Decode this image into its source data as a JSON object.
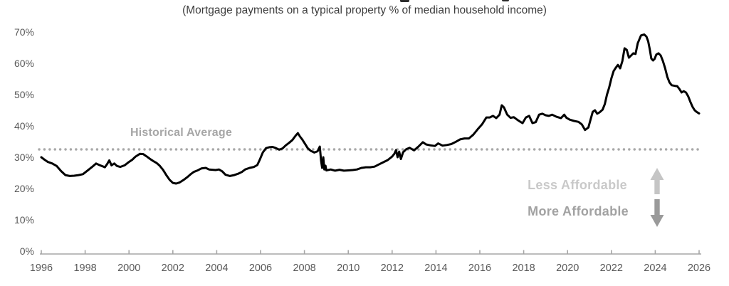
{
  "header": {
    "subtitle": "(Mortgage payments on a typical property % of median household income)"
  },
  "annotations": {
    "historical_average_label": "Historical Average",
    "less_affordable_label": "Less Affordable",
    "more_affordable_label": "More Affordable"
  },
  "colors": {
    "series_line": "#000000",
    "historical_average_dots": "#a8a8a8",
    "historical_average_text": "#a6a6a6",
    "less_affordable_text": "#c9c9c9",
    "more_affordable_text": "#a2a2a2",
    "up_arrow": "#c5c5c5",
    "down_arrow": "#9a9a9a",
    "axis_line": "#a6a6a6",
    "axis_labels": "#595959",
    "subtitle_text": "#3d3d3d"
  },
  "chart_data": {
    "type": "line",
    "title": "",
    "subtitle": "(Mortgage payments on a typical property % of median household income)",
    "xlabel": "",
    "ylabel": "",
    "xlim": [
      1996,
      2026
    ],
    "ylim": [
      0,
      70
    ],
    "grid": false,
    "legend": "none",
    "x_tick_labels": [
      "1996",
      "1998",
      "2000",
      "2002",
      "2004",
      "2006",
      "2008",
      "2010",
      "2012",
      "2014",
      "2016",
      "2018",
      "2020",
      "2022",
      "2024",
      "2026"
    ],
    "y_tick_labels": [
      "0%",
      "10%",
      "20%",
      "30%",
      "40%",
      "50%",
      "60%",
      "70%"
    ],
    "y_tick_values": [
      0,
      10,
      20,
      30,
      40,
      50,
      60,
      70
    ],
    "historical_average": 32.5,
    "series": [
      {
        "name": "Mortgage payments on a typical property % of median household income",
        "x": [
          1996.0,
          1996.15,
          1996.3,
          1996.5,
          1996.7,
          1996.9,
          1997.1,
          1997.3,
          1997.5,
          1997.7,
          1997.9,
          1998.1,
          1998.3,
          1998.5,
          1998.65,
          1998.8,
          1998.9,
          1999.0,
          1999.1,
          1999.2,
          1999.33,
          1999.45,
          1999.6,
          1999.8,
          2000.0,
          2000.15,
          2000.3,
          2000.5,
          2000.65,
          2000.8,
          2000.95,
          2001.1,
          2001.25,
          2001.4,
          2001.55,
          2001.7,
          2001.85,
          2002.0,
          2002.15,
          2002.3,
          2002.5,
          2002.65,
          2002.8,
          2002.95,
          2003.1,
          2003.3,
          2003.5,
          2003.65,
          2003.8,
          2003.95,
          2004.1,
          2004.25,
          2004.4,
          2004.6,
          2004.8,
          2005.0,
          2005.15,
          2005.3,
          2005.5,
          2005.7,
          2005.85,
          2005.95,
          2006.1,
          2006.25,
          2006.4,
          2006.55,
          2006.7,
          2006.85,
          2007.0,
          2007.15,
          2007.3,
          2007.45,
          2007.6,
          2007.7,
          2007.8,
          2007.9,
          2008.0,
          2008.15,
          2008.3,
          2008.45,
          2008.6,
          2008.7,
          2008.76,
          2008.81,
          2008.86,
          2008.91,
          2008.96,
          2009.0,
          2009.2,
          2009.4,
          2009.6,
          2009.8,
          2010.0,
          2010.2,
          2010.4,
          2010.6,
          2010.8,
          2011.0,
          2011.2,
          2011.4,
          2011.6,
          2011.8,
          2012.0,
          2012.1,
          2012.18,
          2012.25,
          2012.32,
          2012.4,
          2012.5,
          2012.65,
          2012.8,
          2013.0,
          2013.2,
          2013.4,
          2013.55,
          2013.75,
          2013.95,
          2014.1,
          2014.3,
          2014.5,
          2014.7,
          2014.9,
          2015.1,
          2015.3,
          2015.5,
          2015.7,
          2015.9,
          2016.1,
          2016.3,
          2016.45,
          2016.6,
          2016.75,
          2016.9,
          2017.0,
          2017.1,
          2017.25,
          2017.4,
          2017.55,
          2017.7,
          2017.85,
          2017.95,
          2018.1,
          2018.25,
          2018.4,
          2018.55,
          2018.7,
          2018.85,
          2019.0,
          2019.15,
          2019.3,
          2019.5,
          2019.7,
          2019.85,
          2019.95,
          2020.1,
          2020.3,
          2020.5,
          2020.65,
          2020.8,
          2020.95,
          2021.05,
          2021.15,
          2021.25,
          2021.35,
          2021.45,
          2021.6,
          2021.7,
          2021.8,
          2021.9,
          2022.0,
          2022.1,
          2022.2,
          2022.3,
          2022.4,
          2022.5,
          2022.6,
          2022.7,
          2022.8,
          2022.9,
          2023.0,
          2023.1,
          2023.2,
          2023.35,
          2023.5,
          2023.6,
          2023.68,
          2023.75,
          2023.82,
          2023.9,
          2023.97,
          2024.05,
          2024.15,
          2024.25,
          2024.35,
          2024.45,
          2024.55,
          2024.65,
          2024.75,
          2024.9,
          2025.0,
          2025.1,
          2025.2,
          2025.3,
          2025.4,
          2025.5,
          2025.6,
          2025.7,
          2025.8,
          2025.9,
          2026.0
        ],
        "y": [
          30.0,
          29.2,
          28.5,
          28.0,
          27.2,
          25.6,
          24.3,
          24.0,
          24.1,
          24.3,
          24.6,
          25.7,
          26.8,
          28.0,
          27.5,
          27.1,
          26.8,
          27.8,
          29.0,
          27.4,
          28.0,
          27.2,
          26.9,
          27.4,
          28.5,
          29.2,
          30.2,
          31.1,
          31.0,
          30.3,
          29.5,
          28.8,
          28.2,
          27.3,
          26.0,
          24.3,
          22.8,
          21.8,
          21.6,
          21.9,
          22.8,
          23.6,
          24.5,
          25.3,
          25.7,
          26.4,
          26.6,
          26.1,
          26.0,
          25.9,
          26.1,
          25.5,
          24.4,
          24.0,
          24.3,
          24.8,
          25.3,
          26.1,
          26.6,
          26.9,
          27.5,
          29.0,
          31.5,
          32.9,
          33.2,
          33.3,
          32.9,
          32.4,
          32.8,
          33.8,
          34.6,
          35.5,
          36.9,
          37.7,
          36.6,
          35.7,
          34.6,
          32.9,
          32.0,
          31.5,
          31.9,
          33.4,
          28.9,
          26.6,
          30.0,
          26.1,
          27.3,
          25.8,
          26.1,
          25.7,
          26.0,
          25.7,
          25.8,
          25.9,
          26.1,
          26.6,
          26.8,
          26.8,
          27.0,
          27.7,
          28.4,
          29.1,
          30.2,
          31.1,
          32.3,
          30.0,
          31.8,
          29.4,
          31.6,
          32.6,
          33.0,
          32.2,
          33.4,
          34.8,
          34.1,
          33.8,
          33.6,
          34.4,
          33.7,
          33.9,
          34.2,
          34.9,
          35.7,
          36.0,
          36.0,
          37.2,
          38.9,
          40.5,
          42.7,
          42.7,
          43.2,
          42.5,
          43.6,
          46.6,
          45.9,
          43.6,
          42.6,
          42.8,
          42.0,
          41.3,
          40.9,
          42.7,
          43.2,
          40.9,
          41.2,
          43.6,
          43.9,
          43.4,
          43.2,
          43.6,
          42.9,
          42.5,
          43.6,
          42.6,
          42.0,
          41.6,
          41.3,
          40.5,
          38.7,
          39.5,
          42.0,
          44.5,
          45.0,
          43.9,
          44.3,
          45.2,
          47.0,
          50.0,
          52.3,
          55.2,
          57.5,
          58.6,
          59.5,
          58.4,
          60.7,
          64.8,
          64.3,
          61.8,
          62.5,
          63.2,
          63.0,
          66.4,
          68.9,
          69.2,
          68.5,
          67.0,
          64.5,
          61.5,
          60.9,
          61.4,
          62.8,
          63.2,
          62.5,
          60.7,
          58.4,
          55.7,
          53.9,
          53.0,
          52.8,
          52.7,
          51.8,
          50.7,
          51.1,
          50.7,
          49.5,
          47.7,
          46.1,
          45.0,
          44.4,
          44.0
        ]
      }
    ]
  }
}
